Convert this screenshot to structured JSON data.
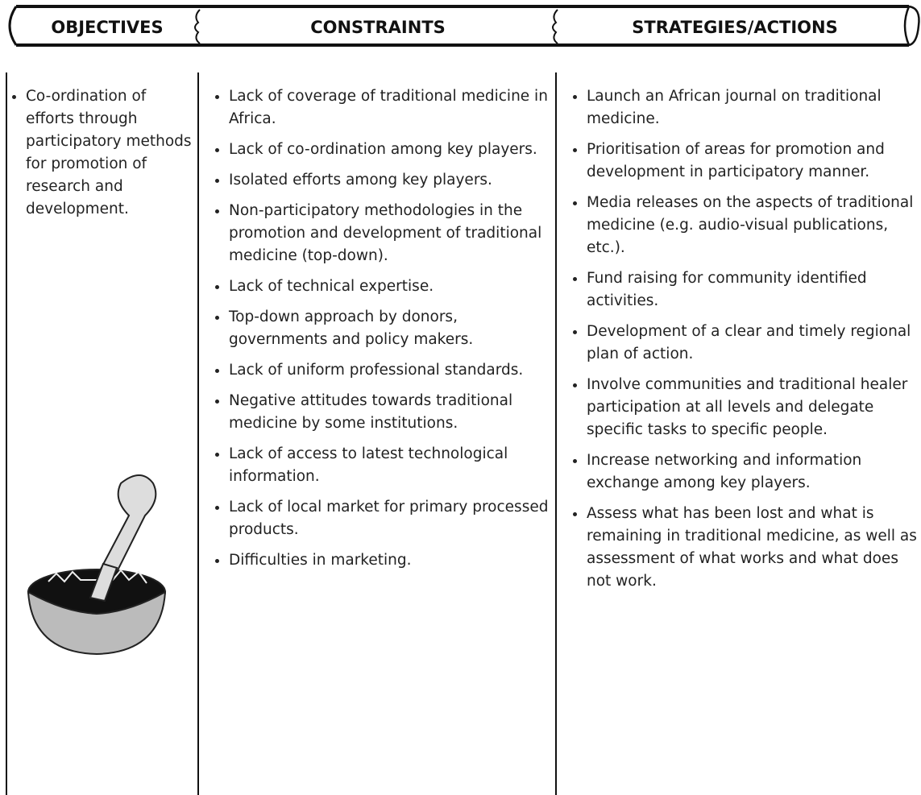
{
  "table": {
    "headers": [
      "OBJECTIVES",
      "CONSTRAINTS",
      "STRATEGIES/ACTIONS"
    ],
    "objectives": [
      "Co-ordination of efforts through participatory methods for promotion of research and development."
    ],
    "constraints": [
      "Lack of coverage of traditional medicine in Africa.",
      "Lack of co-ordination among key players.",
      "Isolated efforts among key players.",
      "Non-participatory methodologies in the promotion and development of traditional medicine (top-down).",
      "Lack of technical expertise.",
      "Top-down approach by donors, governments and policy makers.",
      "Lack of uniform professional standards.",
      "Negative attitudes towards traditional medicine by some institutions.",
      "Lack of access to latest technological information.",
      "Lack of local market for primary processed products.",
      "Difficulties in marketing."
    ],
    "strategies": [
      "Launch an African journal on traditional medicine.",
      "Prioritisation of areas for promotion and development in participatory manner.",
      "Media releases on the aspects of traditional medicine (e.g. audio-visual publications, etc.).",
      "Fund raising for community identified activities.",
      "Development of a clear and timely regional plan of action.",
      "Involve communities and traditional healer participation at all levels and delegate specific tasks to specific people.",
      "Increase networking and information exchange among key players.",
      "Assess what has been lost and what is remaining in traditional medicine, as well as assessment of what works and what does not work."
    ]
  }
}
